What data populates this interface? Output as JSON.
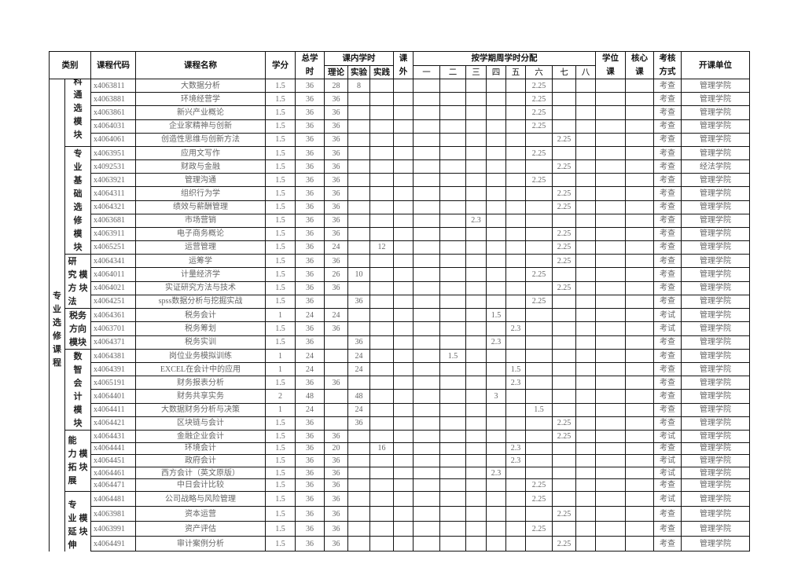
{
  "header": {
    "category": "类别",
    "code": "课程代码",
    "name": "课程名称",
    "credits": "学分",
    "total_hours": "总学时",
    "in_class": "课内学时",
    "theory": "理论",
    "experiment": "实验",
    "practice": "实践",
    "extracurricular": "课外",
    "semester_dist": "按学期周学时分配",
    "semesters": [
      "一",
      "二",
      "三",
      "四",
      "五",
      "六",
      "七",
      "八"
    ],
    "degree_course": "学位课",
    "core_course": "核心课",
    "assessment": "考核方式",
    "department": "开课单位"
  },
  "outer_category": "专业选修课程",
  "groups": [
    {
      "label": "科通选模块",
      "label2": "",
      "clip_top": true,
      "rows": [
        {
          "code": "x4063811",
          "name": "大数据分析",
          "credits": "1.5",
          "total": "36",
          "theory": "28",
          "experiment": "8",
          "practice": "",
          "extra": "",
          "sem": [
            "",
            "",
            "",
            "",
            "",
            "2.25",
            "",
            ""
          ],
          "assess": "考查",
          "dept": "管理学院"
        },
        {
          "code": "x4063881",
          "name": "环境经营学",
          "credits": "1.5",
          "total": "36",
          "theory": "36",
          "experiment": "",
          "practice": "",
          "extra": "",
          "sem": [
            "",
            "",
            "",
            "",
            "",
            "2.25",
            "",
            ""
          ],
          "assess": "考查",
          "dept": "管理学院"
        },
        {
          "code": "x4063861",
          "name": "新兴产业概论",
          "credits": "1.5",
          "total": "36",
          "theory": "36",
          "experiment": "",
          "practice": "",
          "extra": "",
          "sem": [
            "",
            "",
            "",
            "",
            "",
            "2.25",
            "",
            ""
          ],
          "assess": "考查",
          "dept": "管理学院"
        },
        {
          "code": "x4064031",
          "name": "企业家精神与创新",
          "credits": "1.5",
          "total": "36",
          "theory": "36",
          "experiment": "",
          "practice": "",
          "extra": "",
          "sem": [
            "",
            "",
            "",
            "",
            "",
            "2.25",
            "",
            ""
          ],
          "assess": "考查",
          "dept": "管理学院"
        },
        {
          "code": "x4064061",
          "name": "创造性思维与创新方法",
          "credits": "1.5",
          "total": "36",
          "theory": "36",
          "experiment": "",
          "practice": "",
          "extra": "",
          "sem": [
            "",
            "",
            "",
            "",
            "",
            "",
            "2.25",
            ""
          ],
          "assess": "考查",
          "dept": "管理学院"
        }
      ]
    },
    {
      "label": "专业基础选修模块",
      "label2": "",
      "rows": [
        {
          "code": "x4063951",
          "name": "应用文写作",
          "credits": "1.5",
          "total": "36",
          "theory": "36",
          "experiment": "",
          "practice": "",
          "extra": "",
          "sem": [
            "",
            "",
            "",
            "",
            "",
            "2.25",
            "",
            ""
          ],
          "assess": "考查",
          "dept": "管理学院"
        },
        {
          "code": "x4092531",
          "name": "财政与金融",
          "credits": "1.5",
          "total": "36",
          "theory": "36",
          "experiment": "",
          "practice": "",
          "extra": "",
          "sem": [
            "",
            "",
            "",
            "",
            "",
            "",
            "2.25",
            ""
          ],
          "assess": "考查",
          "dept": "经法学院"
        },
        {
          "code": "x4063921",
          "name": "管理沟通",
          "credits": "1.5",
          "total": "36",
          "theory": "36",
          "experiment": "",
          "practice": "",
          "extra": "",
          "sem": [
            "",
            "",
            "",
            "",
            "",
            "2.25",
            "",
            ""
          ],
          "assess": "考查",
          "dept": "管理学院"
        },
        {
          "code": "x4064311",
          "name": "组织行为学",
          "credits": "1.5",
          "total": "36",
          "theory": "36",
          "experiment": "",
          "practice": "",
          "extra": "",
          "sem": [
            "",
            "",
            "",
            "",
            "",
            "",
            "2.25",
            ""
          ],
          "assess": "考查",
          "dept": "管理学院"
        },
        {
          "code": "x4064321",
          "name": "绩效与薪酬管理",
          "credits": "1.5",
          "total": "36",
          "theory": "36",
          "experiment": "",
          "practice": "",
          "extra": "",
          "sem": [
            "",
            "",
            "",
            "",
            "",
            "",
            "2.25",
            ""
          ],
          "assess": "考查",
          "dept": "管理学院"
        },
        {
          "code": "x4063681",
          "name": "市场营销",
          "credits": "1.5",
          "total": "36",
          "theory": "36",
          "experiment": "",
          "practice": "",
          "extra": "",
          "sem": [
            "",
            "",
            "2.3",
            "",
            "",
            "",
            "",
            ""
          ],
          "assess": "考查",
          "dept": "管理学院"
        },
        {
          "code": "x4063911",
          "name": "电子商务概论",
          "credits": "1.5",
          "total": "36",
          "theory": "36",
          "experiment": "",
          "practice": "",
          "extra": "",
          "sem": [
            "",
            "",
            "",
            "",
            "",
            "",
            "2.25",
            ""
          ],
          "assess": "考查",
          "dept": "管理学院"
        },
        {
          "code": "x4065251",
          "name": "运营管理",
          "credits": "1.5",
          "total": "36",
          "theory": "24",
          "experiment": "",
          "practice": "12",
          "extra": "",
          "sem": [
            "",
            "",
            "",
            "",
            "",
            "",
            "2.25",
            ""
          ],
          "assess": "考查",
          "dept": "管理学院"
        }
      ]
    },
    {
      "label": "研究方法",
      "label2": "模块",
      "rows": [
        {
          "code": "x4064341",
          "name": "运筹学",
          "credits": "1.5",
          "total": "36",
          "theory": "36",
          "experiment": "",
          "practice": "",
          "extra": "",
          "sem": [
            "",
            "",
            "",
            "",
            "",
            "",
            "2.25",
            ""
          ],
          "assess": "考查",
          "dept": "管理学院"
        },
        {
          "code": "x4064011",
          "name": "计量经济学",
          "credits": "1.5",
          "total": "36",
          "theory": "26",
          "experiment": "10",
          "practice": "",
          "extra": "",
          "sem": [
            "",
            "",
            "",
            "",
            "",
            "2.25",
            "",
            ""
          ],
          "assess": "考查",
          "dept": "管理学院"
        },
        {
          "code": "x4064021",
          "name": "实证研究方法与技术",
          "credits": "1.5",
          "total": "36",
          "theory": "36",
          "experiment": "",
          "practice": "",
          "extra": "",
          "sem": [
            "",
            "",
            "",
            "",
            "",
            "",
            "2.25",
            ""
          ],
          "assess": "考查",
          "dept": "管理学院"
        },
        {
          "code": "x4064251",
          "name": "spss数据分析与挖掘实战",
          "credits": "1.5",
          "total": "36",
          "theory": "",
          "experiment": "36",
          "practice": "",
          "extra": "",
          "sem": [
            "",
            "",
            "",
            "",
            "",
            "2.25",
            "",
            ""
          ],
          "assess": "考查",
          "dept": "管理学院"
        }
      ]
    },
    {
      "label": "税务方向模块",
      "label2": "",
      "wide": true,
      "rows": [
        {
          "code": "x4064361",
          "name": "税务会计",
          "credits": "1",
          "total": "24",
          "theory": "24",
          "experiment": "",
          "practice": "",
          "extra": "",
          "sem": [
            "",
            "",
            "",
            "1.5",
            "",
            "",
            "",
            ""
          ],
          "assess": "考试",
          "dept": "管理学院"
        },
        {
          "code": "x4063701",
          "name": "税务筹划",
          "credits": "1.5",
          "total": "36",
          "theory": "36",
          "experiment": "",
          "practice": "",
          "extra": "",
          "sem": [
            "",
            "",
            "",
            "",
            "2.3",
            "",
            "",
            ""
          ],
          "assess": "考试",
          "dept": "管理学院"
        },
        {
          "code": "x4064371",
          "name": "税务实训",
          "credits": "1.5",
          "total": "36",
          "theory": "",
          "experiment": "36",
          "practice": "",
          "extra": "",
          "sem": [
            "",
            "",
            "",
            "2.3",
            "",
            "",
            "",
            ""
          ],
          "assess": "考查",
          "dept": "管理学院"
        }
      ]
    },
    {
      "label": "数智会计模块",
      "label2": "",
      "rows": [
        {
          "code": "x4064381",
          "name": "岗位业务模拟训练",
          "credits": "1",
          "total": "24",
          "theory": "",
          "experiment": "24",
          "practice": "",
          "extra": "",
          "sem": [
            "",
            "1.5",
            "",
            "",
            "",
            "",
            "",
            ""
          ],
          "assess": "考查",
          "dept": "管理学院"
        },
        {
          "code": "x4064391",
          "name": "EXCEL在会计中的应用",
          "credits": "1",
          "total": "24",
          "theory": "",
          "experiment": "24",
          "practice": "",
          "extra": "",
          "sem": [
            "",
            "",
            "",
            "",
            "1.5",
            "",
            "",
            ""
          ],
          "assess": "考查",
          "dept": "管理学院"
        },
        {
          "code": "x4065191",
          "name": "财务报表分析",
          "credits": "1.5",
          "total": "36",
          "theory": "36",
          "experiment": "",
          "practice": "",
          "extra": "",
          "sem": [
            "",
            "",
            "",
            "",
            "2.3",
            "",
            "",
            ""
          ],
          "assess": "考查",
          "dept": "管理学院"
        },
        {
          "code": "x4064401",
          "name": "财务共享实务",
          "credits": "2",
          "total": "48",
          "theory": "",
          "experiment": "48",
          "practice": "",
          "extra": "",
          "sem": [
            "",
            "",
            "",
            "3",
            "",
            "",
            "",
            ""
          ],
          "assess": "考查",
          "dept": "管理学院"
        },
        {
          "code": "x4064411",
          "name": "大数据财务分析与决策",
          "credits": "1",
          "total": "24",
          "theory": "",
          "experiment": "24",
          "practice": "",
          "extra": "",
          "sem": [
            "",
            "",
            "",
            "",
            "",
            "1.5",
            "",
            ""
          ],
          "assess": "考查",
          "dept": "管理学院"
        },
        {
          "code": "x4064421",
          "name": "区块链与会计",
          "credits": "1.5",
          "total": "36",
          "theory": "",
          "experiment": "36",
          "practice": "",
          "extra": "",
          "sem": [
            "",
            "",
            "",
            "",
            "",
            "",
            "2.25",
            ""
          ],
          "assess": "考查",
          "dept": "管理学院"
        }
      ]
    },
    {
      "label": "能力拓展",
      "label2": "模块",
      "rows": [
        {
          "code": "x4064431",
          "name": "金融企业会计",
          "credits": "1.5",
          "total": "36",
          "theory": "36",
          "experiment": "",
          "practice": "",
          "extra": "",
          "sem": [
            "",
            "",
            "",
            "",
            "",
            "",
            "2.25",
            ""
          ],
          "assess": "考试",
          "dept": "管理学院"
        },
        {
          "code": "x4064441",
          "name": "环境会计",
          "credits": "1.5",
          "total": "36",
          "theory": "20",
          "experiment": "",
          "practice": "16",
          "extra": "",
          "sem": [
            "",
            "",
            "",
            "",
            "2.3",
            "",
            "",
            ""
          ],
          "assess": "考查",
          "dept": "管理学院"
        },
        {
          "code": "x4064451",
          "name": "政府会计",
          "credits": "1.5",
          "total": "36",
          "theory": "36",
          "experiment": "",
          "practice": "",
          "extra": "",
          "sem": [
            "",
            "",
            "",
            "",
            "2.3",
            "",
            "",
            ""
          ],
          "assess": "考试",
          "dept": "管理学院"
        },
        {
          "code": "x4064461",
          "name": "西方会计（英文原版）",
          "credits": "1.5",
          "total": "36",
          "theory": "36",
          "experiment": "",
          "practice": "",
          "extra": "",
          "sem": [
            "",
            "",
            "",
            "2.3",
            "",
            "",
            "",
            ""
          ],
          "assess": "考试",
          "dept": "管理学院"
        },
        {
          "code": "x4064471",
          "name": "中日会计比较",
          "credits": "1.5",
          "total": "36",
          "theory": "36",
          "experiment": "",
          "practice": "",
          "extra": "",
          "sem": [
            "",
            "",
            "",
            "",
            "",
            "2.25",
            "",
            ""
          ],
          "assess": "考查",
          "dept": "管理学院"
        }
      ]
    },
    {
      "label": "专业延伸",
      "label2": "模块",
      "clip_bottom": true,
      "rows": [
        {
          "code": "x4064481",
          "name": "公司战略与风险管理",
          "credits": "1.5",
          "total": "36",
          "theory": "36",
          "experiment": "",
          "practice": "",
          "extra": "",
          "sem": [
            "",
            "",
            "",
            "",
            "",
            "2.25",
            "",
            ""
          ],
          "assess": "考试",
          "dept": "管理学院"
        },
        {
          "code": "x4063981",
          "name": "资本运营",
          "credits": "1.5",
          "total": "36",
          "theory": "36",
          "experiment": "",
          "practice": "",
          "extra": "",
          "sem": [
            "",
            "",
            "",
            "",
            "",
            "",
            "2.25",
            ""
          ],
          "assess": "考查",
          "dept": "管理学院"
        },
        {
          "code": "x4063991",
          "name": "资产评估",
          "credits": "1.5",
          "total": "36",
          "theory": "36",
          "experiment": "",
          "practice": "",
          "extra": "",
          "sem": [
            "",
            "",
            "",
            "",
            "",
            "2.25",
            "",
            ""
          ],
          "assess": "考查",
          "dept": "管理学院"
        },
        {
          "code": "x4064491",
          "name": "审计案例分析",
          "credits": "1.5",
          "total": "36",
          "theory": "36",
          "experiment": "",
          "practice": "",
          "extra": "",
          "sem": [
            "",
            "",
            "",
            "",
            "",
            "",
            "2.25",
            ""
          ],
          "assess": "考查",
          "dept": "管理学院"
        }
      ]
    }
  ]
}
